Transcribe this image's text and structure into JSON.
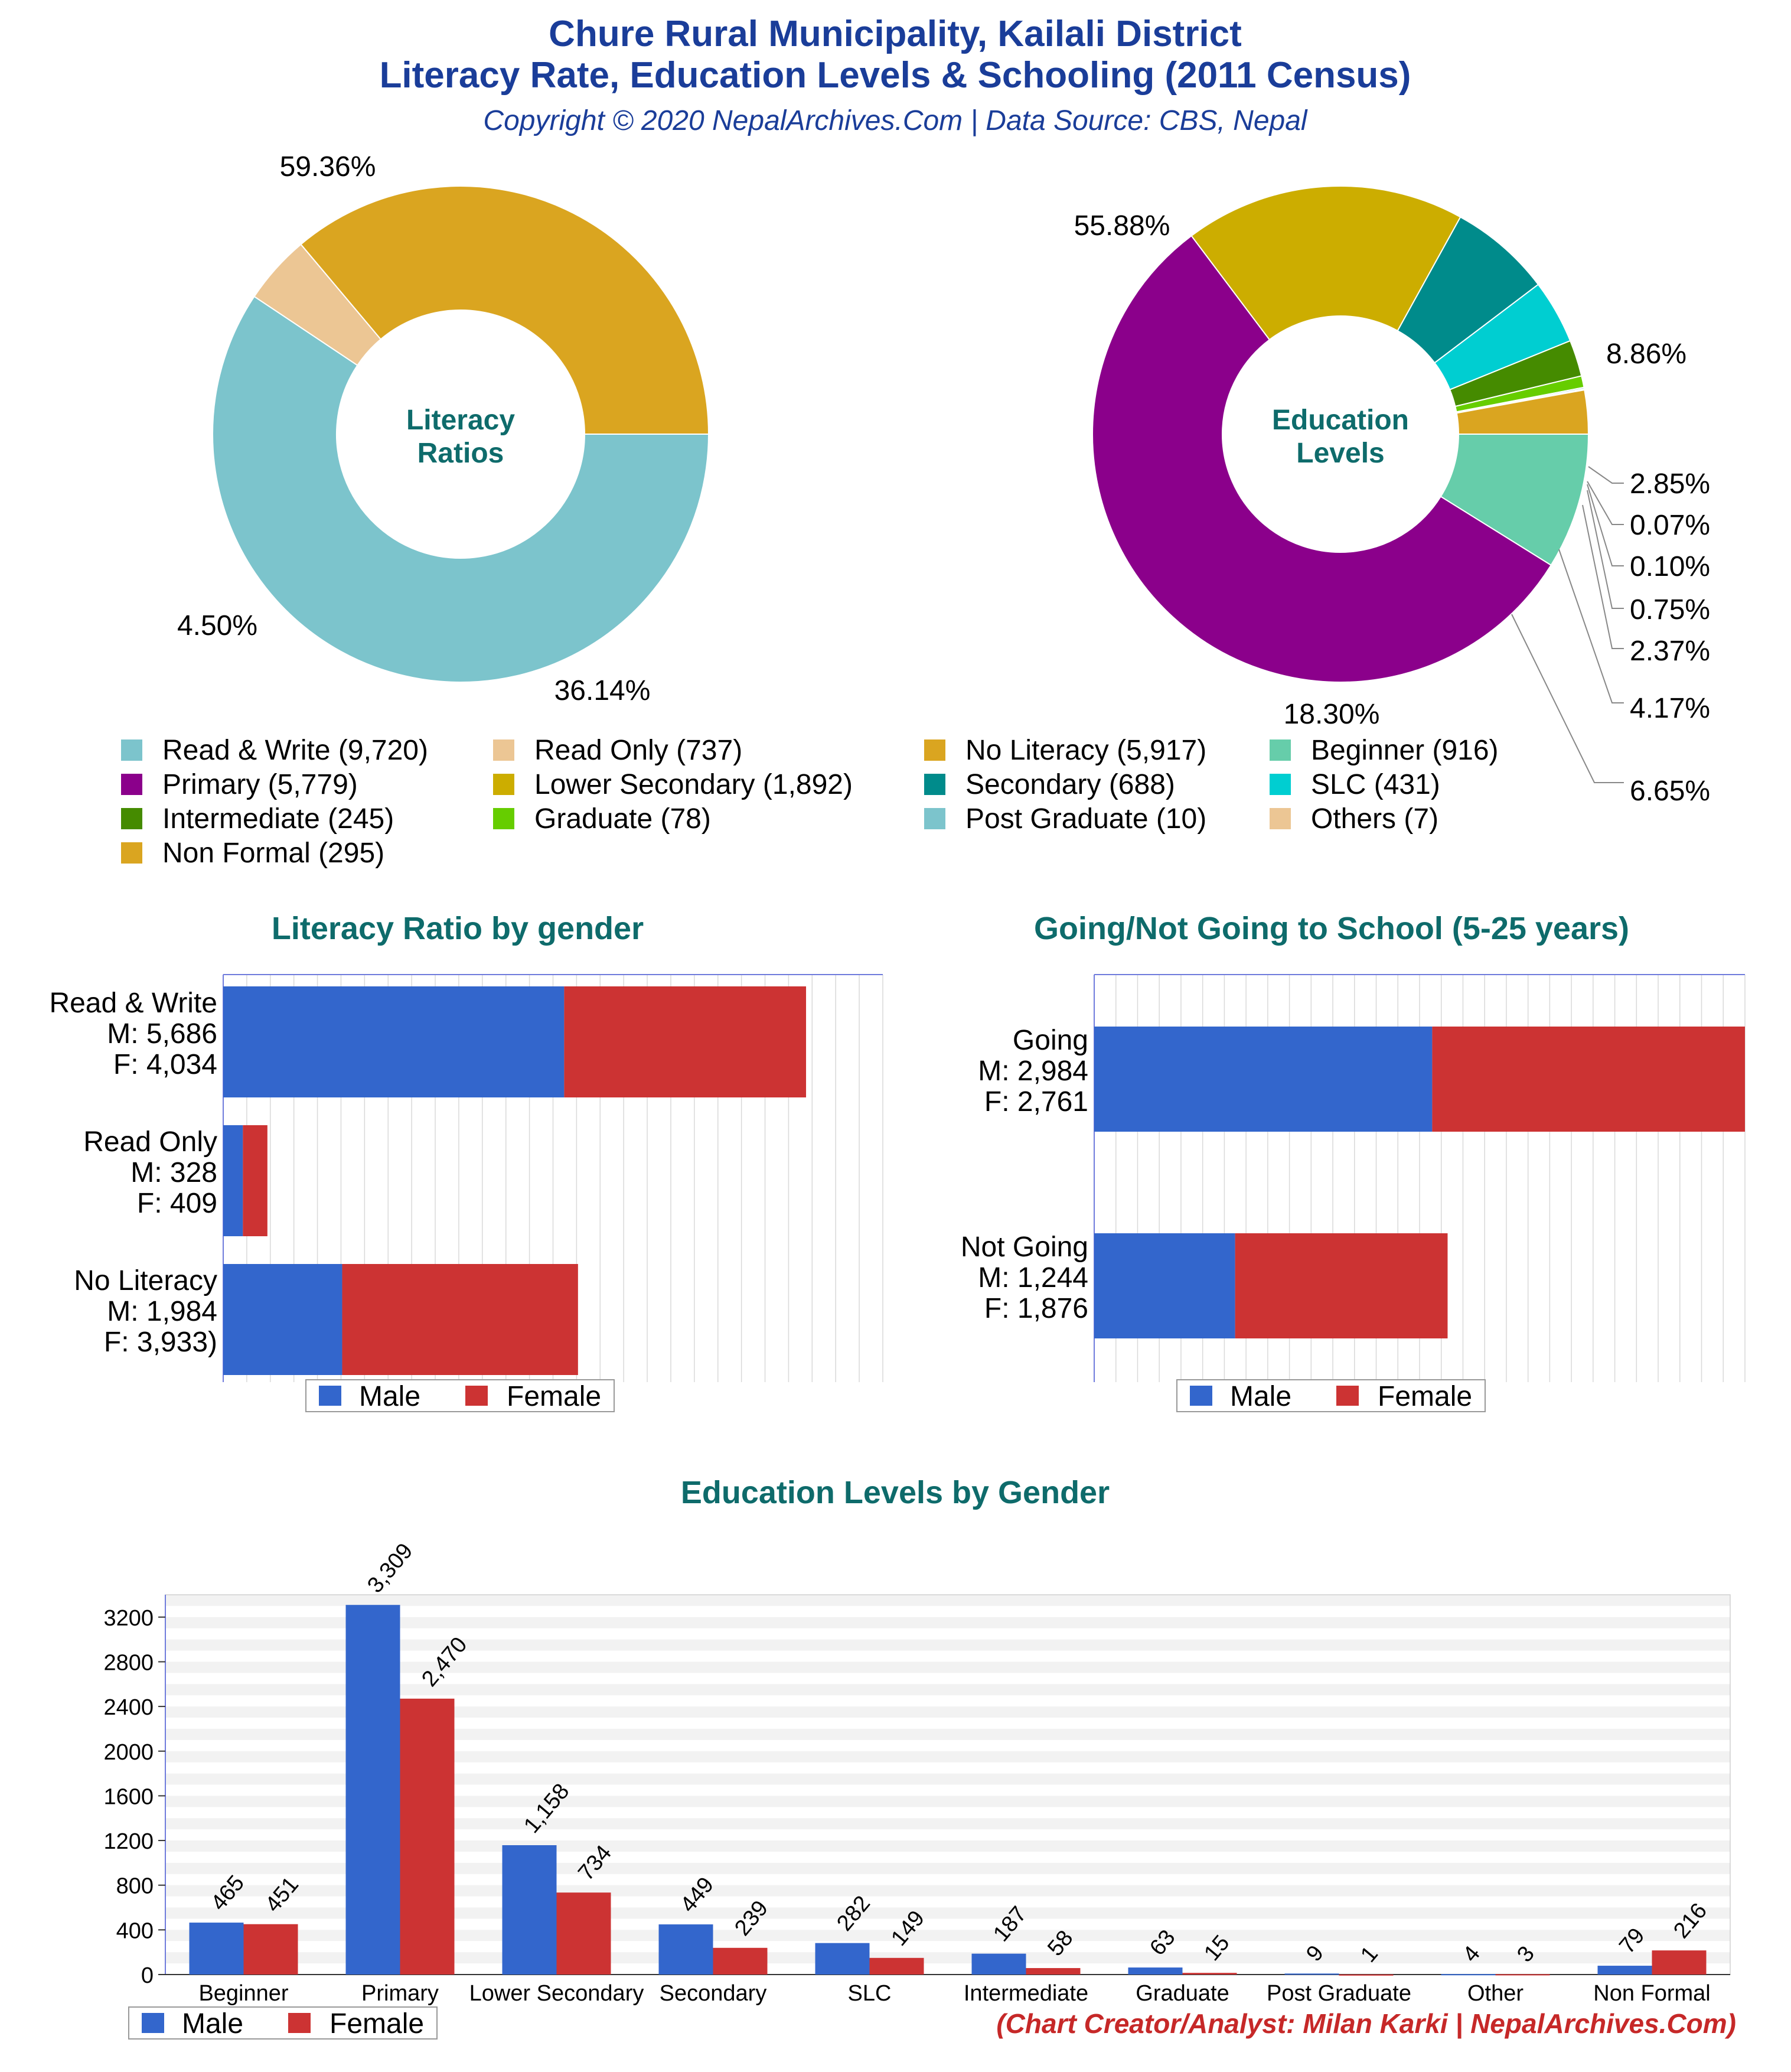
{
  "header": {
    "title_line1": "Chure Rural Municipality, Kailali District",
    "title_line2": "Literacy Rate, Education Levels & Schooling (2011 Census)",
    "copyright": "Copyright © 2020 NepalArchives.Com | Data Source: CBS, Nepal"
  },
  "credit": "(Chart Creator/Analyst: Milan Karki | NepalArchives.Com)",
  "legend_male": "Male",
  "legend_female": "Female",
  "combined_legend": [
    "Read & Write (9,720)",
    "Read Only (737)",
    "No Literacy (5,917)",
    "Beginner (916)",
    "Primary (5,779)",
    "Lower Secondary (1,892)",
    "Secondary (688)",
    "SLC (431)",
    "Intermediate (245)",
    "Graduate (78)",
    "Post Graduate (10)",
    "Others (7)",
    "Non Formal (295)"
  ],
  "chart_data": [
    {
      "type": "pie",
      "center_label": [
        "Literacy",
        "Ratios"
      ],
      "categories": [
        "Read & Write",
        "Read Only",
        "No Literacy"
      ],
      "values": [
        9720,
        737,
        5917
      ],
      "percent_labels": [
        "59.36%",
        "4.50%",
        "36.14%"
      ],
      "colors": [
        "#7cc4cc",
        "#ecc694",
        "#daa520"
      ]
    },
    {
      "type": "pie",
      "center_label": [
        "Education",
        "Levels"
      ],
      "categories": [
        "Beginner",
        "Primary",
        "Lower Secondary",
        "Secondary",
        "SLC",
        "Intermediate",
        "Graduate",
        "Post Graduate",
        "Others",
        "Non Formal"
      ],
      "values": [
        916,
        5779,
        1892,
        688,
        431,
        245,
        78,
        10,
        7,
        295
      ],
      "percent_labels": [
        "8.86%",
        "55.88%",
        "18.30%",
        "6.65%",
        "4.17%",
        "2.37%",
        "0.75%",
        "0.10%",
        "0.07%",
        "2.85%"
      ],
      "colors": [
        "#66cdaa",
        "#8b008b",
        "#ccad00",
        "#008b8b",
        "#00ced1",
        "#458b00",
        "#66cd00",
        "#7cc4cc",
        "#ecc694",
        "#daa520"
      ]
    },
    {
      "type": "bar",
      "title": "Literacy Ratio by gender",
      "orientation": "horizontal",
      "stacked": true,
      "categories": [
        "Read & Write",
        "Read Only",
        "No Literacy"
      ],
      "row_labels": [
        [
          "Read & Write",
          "M: 5,686",
          "F: 4,034"
        ],
        [
          "Read Only",
          "M: 328",
          "F: 409"
        ],
        [
          "No Literacy",
          "M: 1,984",
          "F: 3,933)"
        ]
      ],
      "series": [
        {
          "name": "Male",
          "values": [
            5686,
            328,
            1984
          ],
          "color": "#3366cc"
        },
        {
          "name": "Female",
          "values": [
            4034,
            409,
            3933
          ],
          "color": "#cc3333"
        }
      ]
    },
    {
      "type": "bar",
      "title": "Going/Not Going to School (5-25 years)",
      "orientation": "horizontal",
      "stacked": true,
      "categories": [
        "Going",
        "Not Going"
      ],
      "row_labels": [
        [
          "Going",
          "M: 2,984",
          "F: 2,761"
        ],
        [
          "Not Going",
          "M: 1,244",
          "F: 1,876"
        ]
      ],
      "series": [
        {
          "name": "Male",
          "values": [
            2984,
            1244
          ],
          "color": "#3366cc"
        },
        {
          "name": "Female",
          "values": [
            2761,
            1876
          ],
          "color": "#cc3333"
        }
      ]
    },
    {
      "type": "bar",
      "title": "Education Levels by Gender",
      "categories": [
        "Beginner",
        "Primary",
        "Lower Secondary",
        "Secondary",
        "SLC",
        "Intermediate",
        "Graduate",
        "Post Graduate",
        "Other",
        "Non Formal"
      ],
      "series": [
        {
          "name": "Male",
          "values": [
            465,
            3309,
            1158,
            449,
            282,
            187,
            63,
            9,
            4,
            79
          ],
          "color": "#3366cc"
        },
        {
          "name": "Female",
          "values": [
            451,
            2470,
            734,
            239,
            149,
            58,
            15,
            1,
            3,
            216
          ],
          "color": "#cc3333"
        }
      ],
      "value_labels": [
        [
          "465",
          "3,309",
          "1,158",
          "449",
          "282",
          "187",
          "63",
          "9",
          "4",
          "79"
        ],
        [
          "451",
          "2,470",
          "734",
          "239",
          "149",
          "58",
          "15",
          "1",
          "3",
          "216"
        ]
      ],
      "yticks": [
        "0",
        "400",
        "800",
        "1200",
        "1600",
        "2000",
        "2400",
        "2800",
        "3200"
      ],
      "ylim": [
        0,
        3400
      ],
      "grid": true
    }
  ]
}
